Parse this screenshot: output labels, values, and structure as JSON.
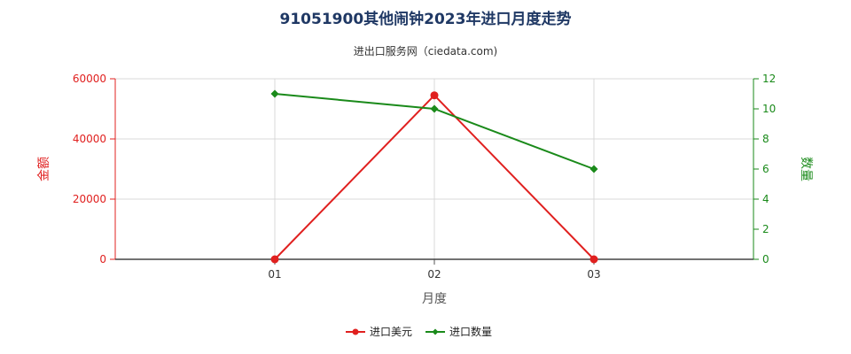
{
  "chart_data": {
    "type": "line",
    "title": "91051900其他闹钟2023年进口月度走势",
    "subtitle": "进出口服务网（ciedata.com)",
    "xlabel": "月度",
    "ylabel_left": "金额",
    "ylabel_right": "数量",
    "categories": [
      "01",
      "02",
      "03"
    ],
    "ylim_left": [
      0,
      60000
    ],
    "yticks_left": [
      "0",
      "20000",
      "40000",
      "60000"
    ],
    "ylim_right": [
      0,
      12
    ],
    "yticks_right": [
      "0",
      "2",
      "4",
      "6",
      "8",
      "10",
      "12"
    ],
    "grid": true,
    "legend_position": "bottom-center",
    "series": [
      {
        "name": "进口美元",
        "axis": "left",
        "color": "#e0201f",
        "marker": "circle",
        "values": [
          0,
          54500,
          0
        ]
      },
      {
        "name": "进口数量",
        "axis": "right",
        "color": "#1a8a1a",
        "marker": "diamond",
        "values": [
          11,
          10,
          6
        ]
      }
    ]
  }
}
